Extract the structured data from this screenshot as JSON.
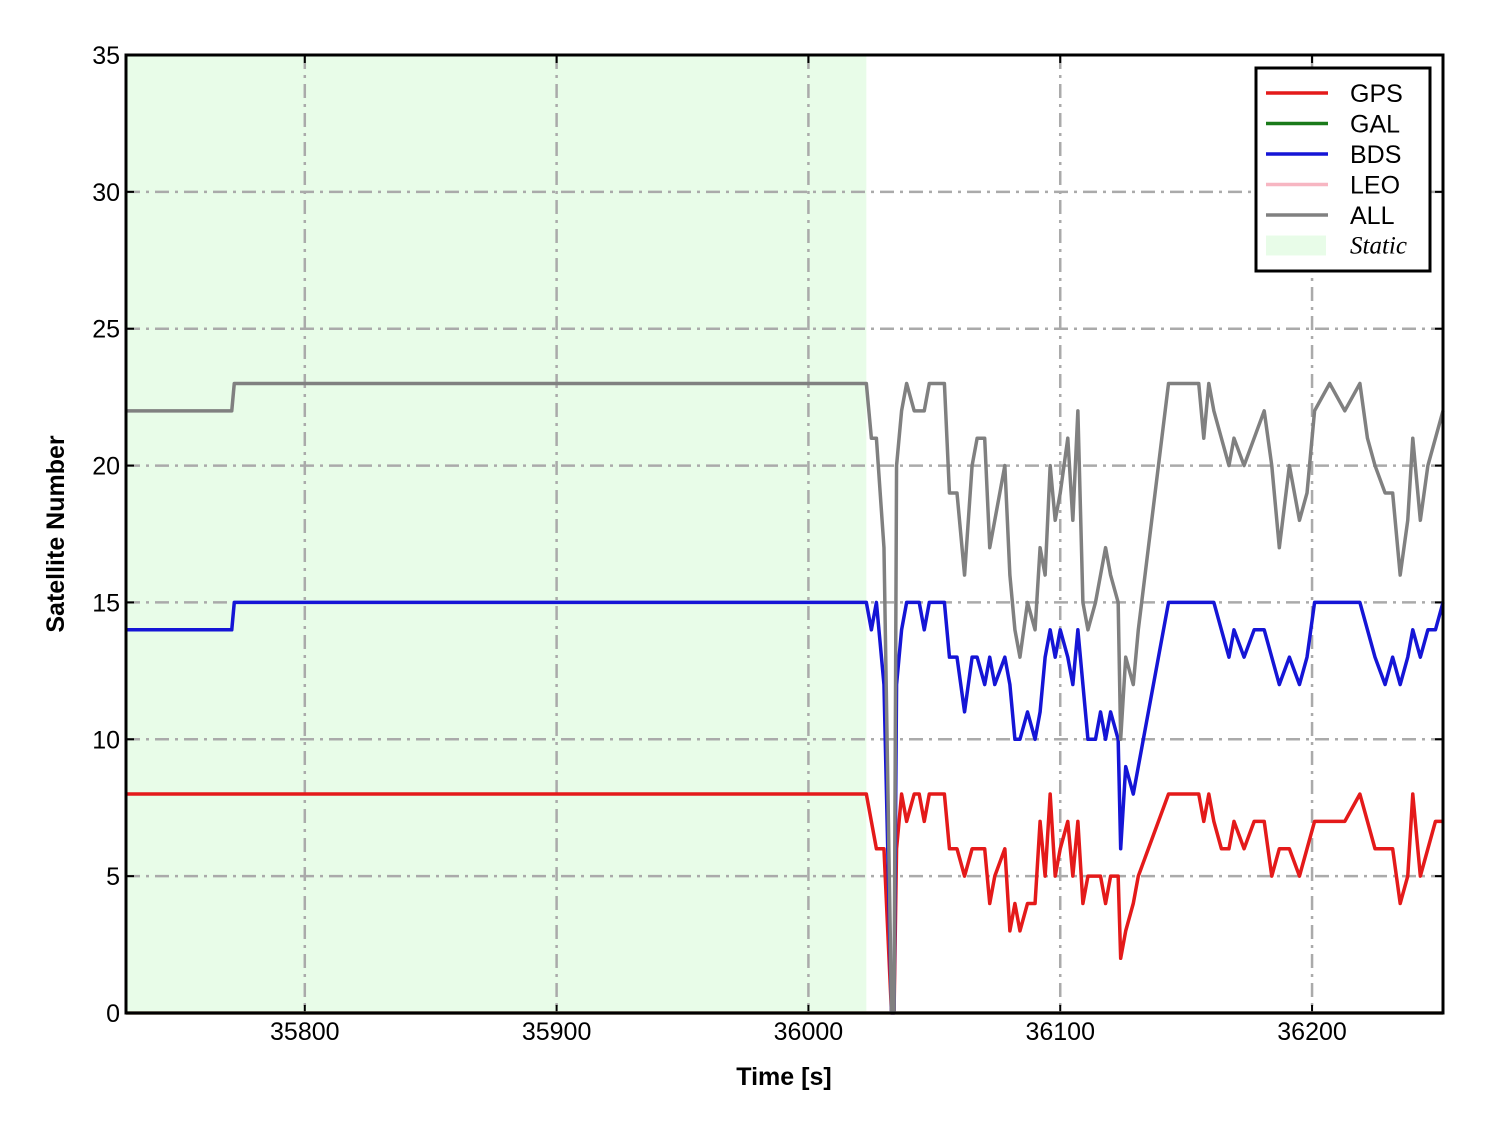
{
  "chart_data": {
    "type": "line",
    "xlabel": "Time [s]",
    "ylabel": "Satellite Number",
    "xlim": [
      35729,
      36252
    ],
    "ylim": [
      0,
      35
    ],
    "xticks": [
      35800,
      35900,
      36000,
      36100,
      36200
    ],
    "yticks": [
      0,
      5,
      10,
      15,
      20,
      25,
      30,
      35
    ],
    "grid": true,
    "legend": "upper right",
    "static_region": {
      "label": "Static",
      "x": [
        35729,
        36023
      ],
      "color": "#e8fce8"
    },
    "x": [
      35729,
      35771,
      35772,
      36023,
      36025,
      36027,
      36030,
      36033,
      36034,
      36035,
      36037,
      36039,
      36042,
      36044,
      36046,
      36048,
      36054,
      36056,
      36059,
      36062,
      36065,
      36067,
      36070,
      36072,
      36074,
      36078,
      36080,
      36082,
      36084,
      36087,
      36090,
      36092,
      36094,
      36096,
      36098,
      36100,
      36103,
      36105,
      36107,
      36109,
      36111,
      36114,
      36116,
      36118,
      36120,
      36123,
      36124,
      36126,
      36129,
      36131,
      36135,
      36139,
      36143,
      36155,
      36157,
      36159,
      36161,
      36164,
      36167,
      36169,
      36173,
      36177,
      36181,
      36184,
      36187,
      36191,
      36195,
      36198,
      36201,
      36207,
      36213,
      36219,
      36222,
      36225,
      36229,
      36232,
      36235,
      36238,
      36240,
      36243,
      36246,
      36249,
      36252
    ],
    "series": [
      {
        "name": "GPS",
        "color": "#e41a1a",
        "values": [
          8,
          8,
          8,
          8,
          7,
          6,
          6,
          0,
          0,
          6,
          8,
          7,
          8,
          8,
          7,
          8,
          8,
          6,
          6,
          5,
          6,
          6,
          6,
          4,
          5,
          6,
          3,
          4,
          3,
          4,
          4,
          7,
          5,
          8,
          5,
          6,
          7,
          5,
          7,
          4,
          5,
          5,
          5,
          4,
          5,
          5,
          2,
          3,
          4,
          5,
          6,
          7,
          8,
          8,
          7,
          8,
          7,
          6,
          6,
          7,
          6,
          7,
          7,
          5,
          6,
          6,
          5,
          6,
          7,
          7,
          7,
          8,
          7,
          6,
          6,
          6,
          4,
          5,
          8,
          5,
          6,
          7,
          7
        ]
      },
      {
        "name": "GAL",
        "color": "#1a7a1a",
        "values": [
          0,
          0,
          0,
          0,
          0,
          0,
          0,
          0,
          0,
          0,
          0,
          0,
          0,
          0,
          0,
          0,
          0,
          0,
          0,
          0,
          0,
          0,
          0,
          0,
          0,
          0,
          0,
          0,
          0,
          0,
          0,
          0,
          0,
          0,
          0,
          0,
          0,
          0,
          0,
          0,
          0,
          0,
          0,
          0,
          0,
          0,
          0,
          0,
          0,
          0,
          0,
          0,
          0,
          0,
          0,
          0,
          0,
          0,
          0,
          0,
          0,
          0,
          0,
          0,
          0,
          0,
          0,
          0,
          0,
          0,
          0,
          0,
          0,
          0,
          0,
          0,
          0,
          0,
          0,
          0,
          0,
          0,
          0
        ]
      },
      {
        "name": "BDS",
        "color": "#1515d6",
        "values": [
          14,
          14,
          15,
          15,
          14,
          15,
          12,
          0,
          0,
          12,
          14,
          15,
          15,
          15,
          14,
          15,
          15,
          13,
          13,
          11,
          13,
          13,
          12,
          13,
          12,
          13,
          12,
          10,
          10,
          11,
          10,
          11,
          13,
          14,
          13,
          14,
          13,
          12,
          14,
          12,
          10,
          10,
          11,
          10,
          11,
          10,
          6,
          9,
          8,
          9,
          11,
          13,
          15,
          15,
          15,
          15,
          15,
          14,
          13,
          14,
          13,
          14,
          14,
          13,
          12,
          13,
          12,
          13,
          15,
          15,
          15,
          15,
          14,
          13,
          12,
          13,
          12,
          13,
          14,
          13,
          14,
          14,
          15
        ]
      },
      {
        "name": "LEO",
        "color": "#f7b6c2",
        "values": [
          0,
          0,
          0,
          0,
          0,
          0,
          0,
          0,
          0,
          0,
          0,
          0,
          0,
          0,
          0,
          0,
          0,
          0,
          0,
          0,
          0,
          0,
          0,
          0,
          0,
          0,
          0,
          0,
          0,
          0,
          0,
          0,
          0,
          0,
          0,
          0,
          0,
          0,
          0,
          0,
          0,
          0,
          0,
          0,
          0,
          0,
          0,
          0,
          0,
          0,
          0,
          0,
          0,
          0,
          0,
          0,
          0,
          0,
          0,
          0,
          0,
          0,
          0,
          0,
          0,
          0,
          0,
          0,
          0,
          0,
          0,
          0,
          0,
          0,
          0,
          0,
          0,
          0,
          0,
          0,
          0,
          0,
          0
        ]
      },
      {
        "name": "ALL",
        "color": "#808080",
        "values": [
          22,
          22,
          23,
          23,
          21,
          21,
          17,
          0,
          0,
          20,
          22,
          23,
          22,
          22,
          22,
          23,
          23,
          19,
          19,
          16,
          20,
          21,
          21,
          17,
          18,
          20,
          16,
          14,
          13,
          15,
          14,
          17,
          16,
          20,
          18,
          19,
          21,
          18,
          22,
          15,
          14,
          15,
          16,
          17,
          16,
          15,
          10,
          13,
          12,
          14,
          17,
          20,
          23,
          23,
          21,
          23,
          22,
          21,
          20,
          21,
          20,
          21,
          22,
          20,
          17,
          20,
          18,
          19,
          22,
          23,
          22,
          23,
          21,
          20,
          19,
          19,
          16,
          18,
          21,
          18,
          20,
          21,
          22
        ]
      }
    ]
  }
}
